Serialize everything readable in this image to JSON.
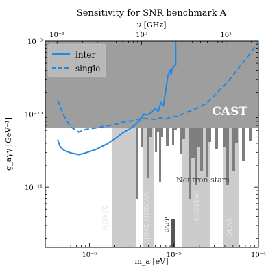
{
  "chart_data": {
    "type": "line",
    "title": "Sensitivity for SNR benchmark A",
    "xlabel": "m_a [eV]",
    "ylabel": "g_aγγ [GeV⁻¹]",
    "top_xlabel": "ν [GHz]",
    "xscale": "log",
    "yscale": "log",
    "xlim": [
      3e-07,
      0.0001
    ],
    "ylim": [
      1.5e-12,
      1e-09
    ],
    "x_ticks": [
      {
        "value": 1e-06,
        "label": "10⁻⁶"
      },
      {
        "value": 1e-05,
        "label": "10⁻⁵"
      },
      {
        "value": 0.0001,
        "label": "10⁻⁴"
      }
    ],
    "y_ticks": [
      {
        "value": 1e-11,
        "label": "10⁻¹¹"
      },
      {
        "value": 1e-10,
        "label": "10⁻¹⁰"
      },
      {
        "value": 1e-09,
        "label": "10⁻⁹"
      }
    ],
    "top_ticks": [
      {
        "value": 0.1,
        "label": "10⁻¹"
      },
      {
        "value": 1,
        "label": "10⁰"
      },
      {
        "value": 10,
        "label": "10¹"
      }
    ],
    "grid": false,
    "legend_position": "top-left",
    "series": [
      {
        "name": "inter",
        "style": "solid",
        "color": "#1e88e5",
        "x": [
          4.2e-07,
          4.5e-07,
          5e-07,
          6e-07,
          7.5e-07,
          9e-07,
          1.2e-06,
          1.6e-06,
          2e-06,
          2.5e-06,
          3e-06,
          3.5e-06,
          4e-06,
          4.4e-06,
          4.6e-06,
          5e-06,
          5.5e-06,
          6e-06,
          6.5e-06,
          7e-06,
          7.5e-06,
          8e-06,
          8.5e-06,
          9e-06,
          9.3e-06,
          9.5e-06,
          1e-05,
          1.05e-05,
          1.05e-05
        ],
        "y": [
          4.5e-11,
          3.6e-11,
          3.2e-11,
          2.95e-11,
          2.8e-11,
          2.95e-11,
          3.3e-11,
          3.9e-11,
          4.6e-11,
          5.6e-11,
          6.3e-11,
          7.2e-11,
          8.3e-11,
          1.01e-10,
          9.8e-11,
          1e-10,
          1.07e-10,
          1.2e-10,
          1.08e-10,
          1.45e-10,
          1.3e-10,
          2.1e-10,
          3.4e-10,
          4e-10,
          3.5e-10,
          4.2e-10,
          4.5e-10,
          4.6e-10,
          1e-09
        ]
      },
      {
        "name": "single",
        "style": "dashed",
        "color": "#1e88e5",
        "x": [
          4.2e-07,
          5e-07,
          6e-07,
          7.5e-07,
          9e-07,
          1.2e-06,
          1.6e-06,
          2e-06,
          2.6e-06,
          3.2e-06,
          4e-06,
          5e-06,
          6e-06,
          7e-06,
          8e-06,
          9e-06,
          1e-05,
          1.1e-05,
          1.25e-05,
          1.4e-05,
          1.6e-05,
          2e-05,
          2.5e-05,
          3e-05,
          4e-05,
          5e-05,
          6e-05,
          7e-05,
          8e-05,
          9e-05,
          0.0001
        ],
        "y": [
          1.55e-10,
          9.5e-11,
          6.7e-11,
          5.7e-11,
          6.2e-11,
          6.5e-11,
          6.9e-11,
          7.2e-11,
          7.9e-11,
          8.1e-11,
          8.7e-11,
          8.7e-11,
          8.5e-11,
          8.9e-11,
          8.6e-11,
          9e-11,
          9.3e-11,
          9.3e-11,
          1e-10,
          1.05e-10,
          1.12e-10,
          1.25e-10,
          1.45e-10,
          1.8e-10,
          2.5e-10,
          3.4e-10,
          4.5e-10,
          5.6e-10,
          6.8e-10,
          8.3e-10,
          1e-09
        ]
      }
    ],
    "exclusion_regions": [
      {
        "label": "CAST",
        "color": "#9e9e9e",
        "label_color": "#ffffff",
        "ymin": 6.6e-11
      },
      {
        "label": "Neutron stars",
        "color": "#7f7f7f",
        "label_color": "#444444"
      },
      {
        "label": "ADMX",
        "color": "#cccccc",
        "label_color": "#e6e6e6"
      },
      {
        "label": "ADMX SIDECAR",
        "color": "#cccccc",
        "label_color": "#e6e6e6"
      },
      {
        "label": "CAPP",
        "color": "#555555",
        "label_color": "#333333"
      },
      {
        "label": "HAYSTAC",
        "color": "#cccccc",
        "label_color": "#e6e6e6"
      },
      {
        "label": "QUAX",
        "color": "#cccccc",
        "label_color": "#e6e6e6"
      }
    ]
  }
}
